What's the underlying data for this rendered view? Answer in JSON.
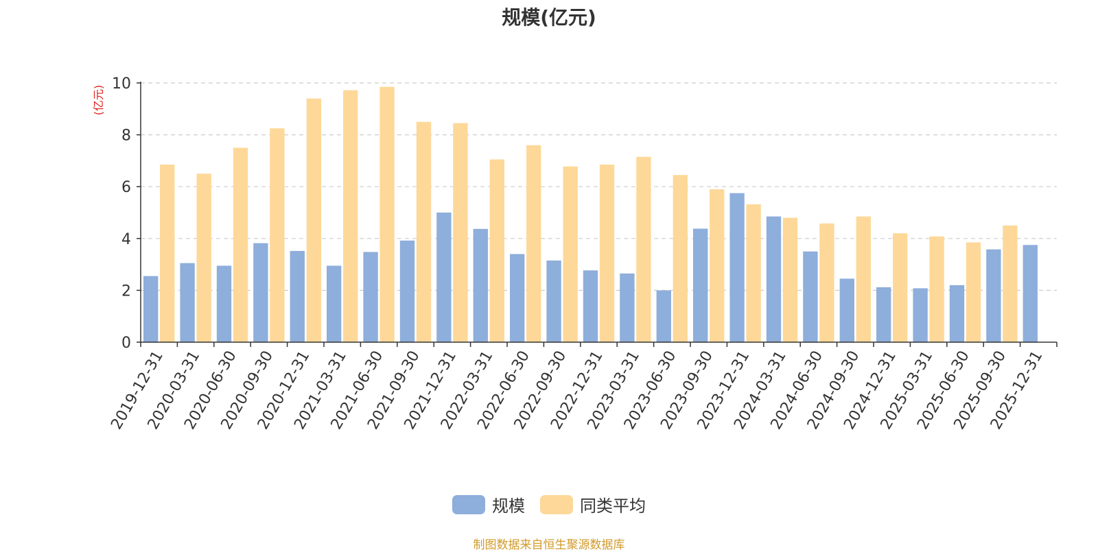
{
  "chart_data": {
    "type": "bar",
    "title": "规模(亿元)",
    "ylabel": "(亿元)",
    "ylim": [
      0,
      10
    ],
    "yticks": [
      0,
      2,
      4,
      6,
      8,
      10
    ],
    "grid": true,
    "legend_position": "bottom",
    "categories": [
      "2019-12-31",
      "2020-03-31",
      "2020-06-30",
      "2020-09-30",
      "2020-12-31",
      "2021-03-31",
      "2021-06-30",
      "2021-09-30",
      "2021-12-31",
      "2022-03-31",
      "2022-06-30",
      "2022-09-30",
      "2022-12-31",
      "2023-03-31",
      "2023-06-30",
      "2023-09-30",
      "2023-12-31",
      "2024-03-31",
      "2024-06-30",
      "2024-09-30",
      "2024-12-31",
      "2025-03-31",
      "2025-06-30",
      "2025-09-30",
      "2025-12-31"
    ],
    "series": [
      {
        "name": "规模",
        "color": "#8eaedb",
        "values": [
          2.55,
          3.05,
          2.95,
          3.82,
          3.52,
          2.95,
          3.48,
          3.92,
          5.0,
          4.37,
          3.4,
          3.15,
          2.77,
          2.65,
          2.0,
          4.38,
          5.75,
          4.85,
          3.5,
          2.45,
          2.12,
          2.08,
          2.2,
          3.58,
          3.75
        ]
      },
      {
        "name": "同类平均",
        "color": "#fed899",
        "values": [
          6.85,
          6.5,
          7.5,
          8.25,
          9.4,
          9.72,
          9.85,
          8.5,
          8.45,
          7.05,
          7.6,
          6.78,
          6.85,
          7.15,
          6.45,
          5.9,
          5.32,
          4.8,
          4.58,
          4.85,
          4.2,
          4.08,
          3.85,
          4.5,
          null
        ]
      }
    ]
  },
  "colors": {
    "unit_label": "#e0211d",
    "grid": "#cccccc",
    "axis": "#333333"
  },
  "source_note": "制图数据来自恒生聚源数据库"
}
